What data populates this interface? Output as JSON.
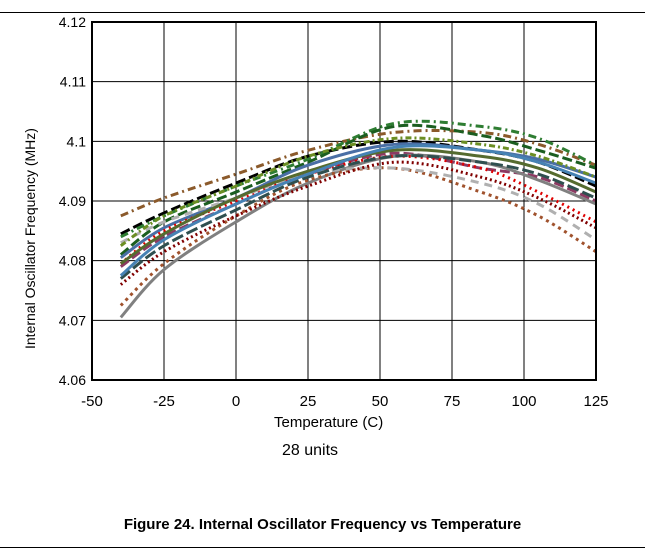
{
  "caption": "Figure 24. Internal Oscillator Frequency vs Temperature",
  "note": "28 units",
  "chart_data": {
    "type": "line",
    "title": "",
    "xlabel": "Temperature (C)",
    "ylabel": "Internal Oscillator Frequency (MHz)",
    "xlim": [
      -50,
      125
    ],
    "ylim": [
      4.06,
      4.12
    ],
    "xticks": [
      "-50",
      "-25",
      "0",
      "25",
      "50",
      "75",
      "100",
      "125"
    ],
    "yticks": [
      "4.06",
      "4.07",
      "4.08",
      "4.09",
      "4.1",
      "4.11",
      "4.12"
    ],
    "grid": true,
    "x": [
      -40,
      -25,
      0,
      25,
      55,
      85,
      105,
      125
    ],
    "series": [
      {
        "color": "#8b5a2b",
        "dash": "8,4,2,4",
        "values": [
          4.0875,
          4.0905,
          4.0945,
          4.0985,
          4.1015,
          4.1015,
          4.0995,
          4.096
        ]
      },
      {
        "color": "#000000",
        "dash": "10,4",
        "values": [
          4.0845,
          4.088,
          4.093,
          4.0975,
          4.1,
          4.0985,
          4.0965,
          4.0925
        ]
      },
      {
        "color": "#2e7d32",
        "dash": "8,4,2,4",
        "values": [
          4.084,
          4.0875,
          4.0925,
          4.097,
          4.103,
          4.1025,
          4.1005,
          4.096
        ]
      },
      {
        "color": "#1b5e20",
        "dash": "10,4",
        "values": [
          4.081,
          4.0865,
          4.0915,
          4.0965,
          4.1025,
          4.101,
          4.0985,
          4.0955
        ]
      },
      {
        "color": "#4a6fa5",
        "dash": "",
        "values": [
          4.0805,
          4.0855,
          4.0905,
          4.096,
          4.0995,
          4.0985,
          4.097,
          4.094
        ]
      },
      {
        "color": "#8b3a62",
        "dash": "10,4",
        "values": [
          4.079,
          4.084,
          4.0895,
          4.0945,
          4.098,
          4.0955,
          4.094,
          4.09
        ]
      },
      {
        "color": "#808080",
        "dash": "",
        "values": [
          4.0705,
          4.0785,
          4.0865,
          4.093,
          4.0975,
          4.0965,
          4.0935,
          4.0895
        ]
      },
      {
        "color": "#e00000",
        "dash": "2,4",
        "values": [
          4.0795,
          4.085,
          4.09,
          4.0945,
          4.0975,
          4.0955,
          4.0915,
          4.0865
        ]
      },
      {
        "color": "#a0522d",
        "dash": "3,4",
        "values": [
          4.0725,
          4.0795,
          4.0875,
          4.0935,
          4.0955,
          4.0915,
          4.0875,
          4.0815
        ]
      },
      {
        "color": "#b0b0b0",
        "dash": "8,6",
        "values": [
          4.083,
          4.0865,
          4.0905,
          4.0945,
          4.0955,
          4.093,
          4.0895,
          4.0835
        ]
      },
      {
        "color": "#556b2f",
        "dash": "",
        "values": [
          4.0795,
          4.0845,
          4.0905,
          4.095,
          4.0985,
          4.0975,
          4.0955,
          4.0915
        ]
      },
      {
        "color": "#2f4f4f",
        "dash": "12,4",
        "values": [
          4.077,
          4.0825,
          4.0885,
          4.094,
          4.0975,
          4.0965,
          4.0945,
          4.0905
        ]
      },
      {
        "color": "#6b8e23",
        "dash": "6,3,2,3",
        "values": [
          4.0825,
          4.0875,
          4.0925,
          4.0975,
          4.1005,
          4.0995,
          4.0975,
          4.094
        ]
      },
      {
        "color": "#4682b4",
        "dash": "",
        "values": [
          4.0775,
          4.0835,
          4.0895,
          4.0945,
          4.099,
          4.0985,
          4.0965,
          4.093
        ]
      },
      {
        "color": "#800000",
        "dash": "2,3",
        "values": [
          4.076,
          4.0815,
          4.0875,
          4.0925,
          4.0965,
          4.094,
          4.0905,
          4.0855
        ]
      }
    ]
  }
}
